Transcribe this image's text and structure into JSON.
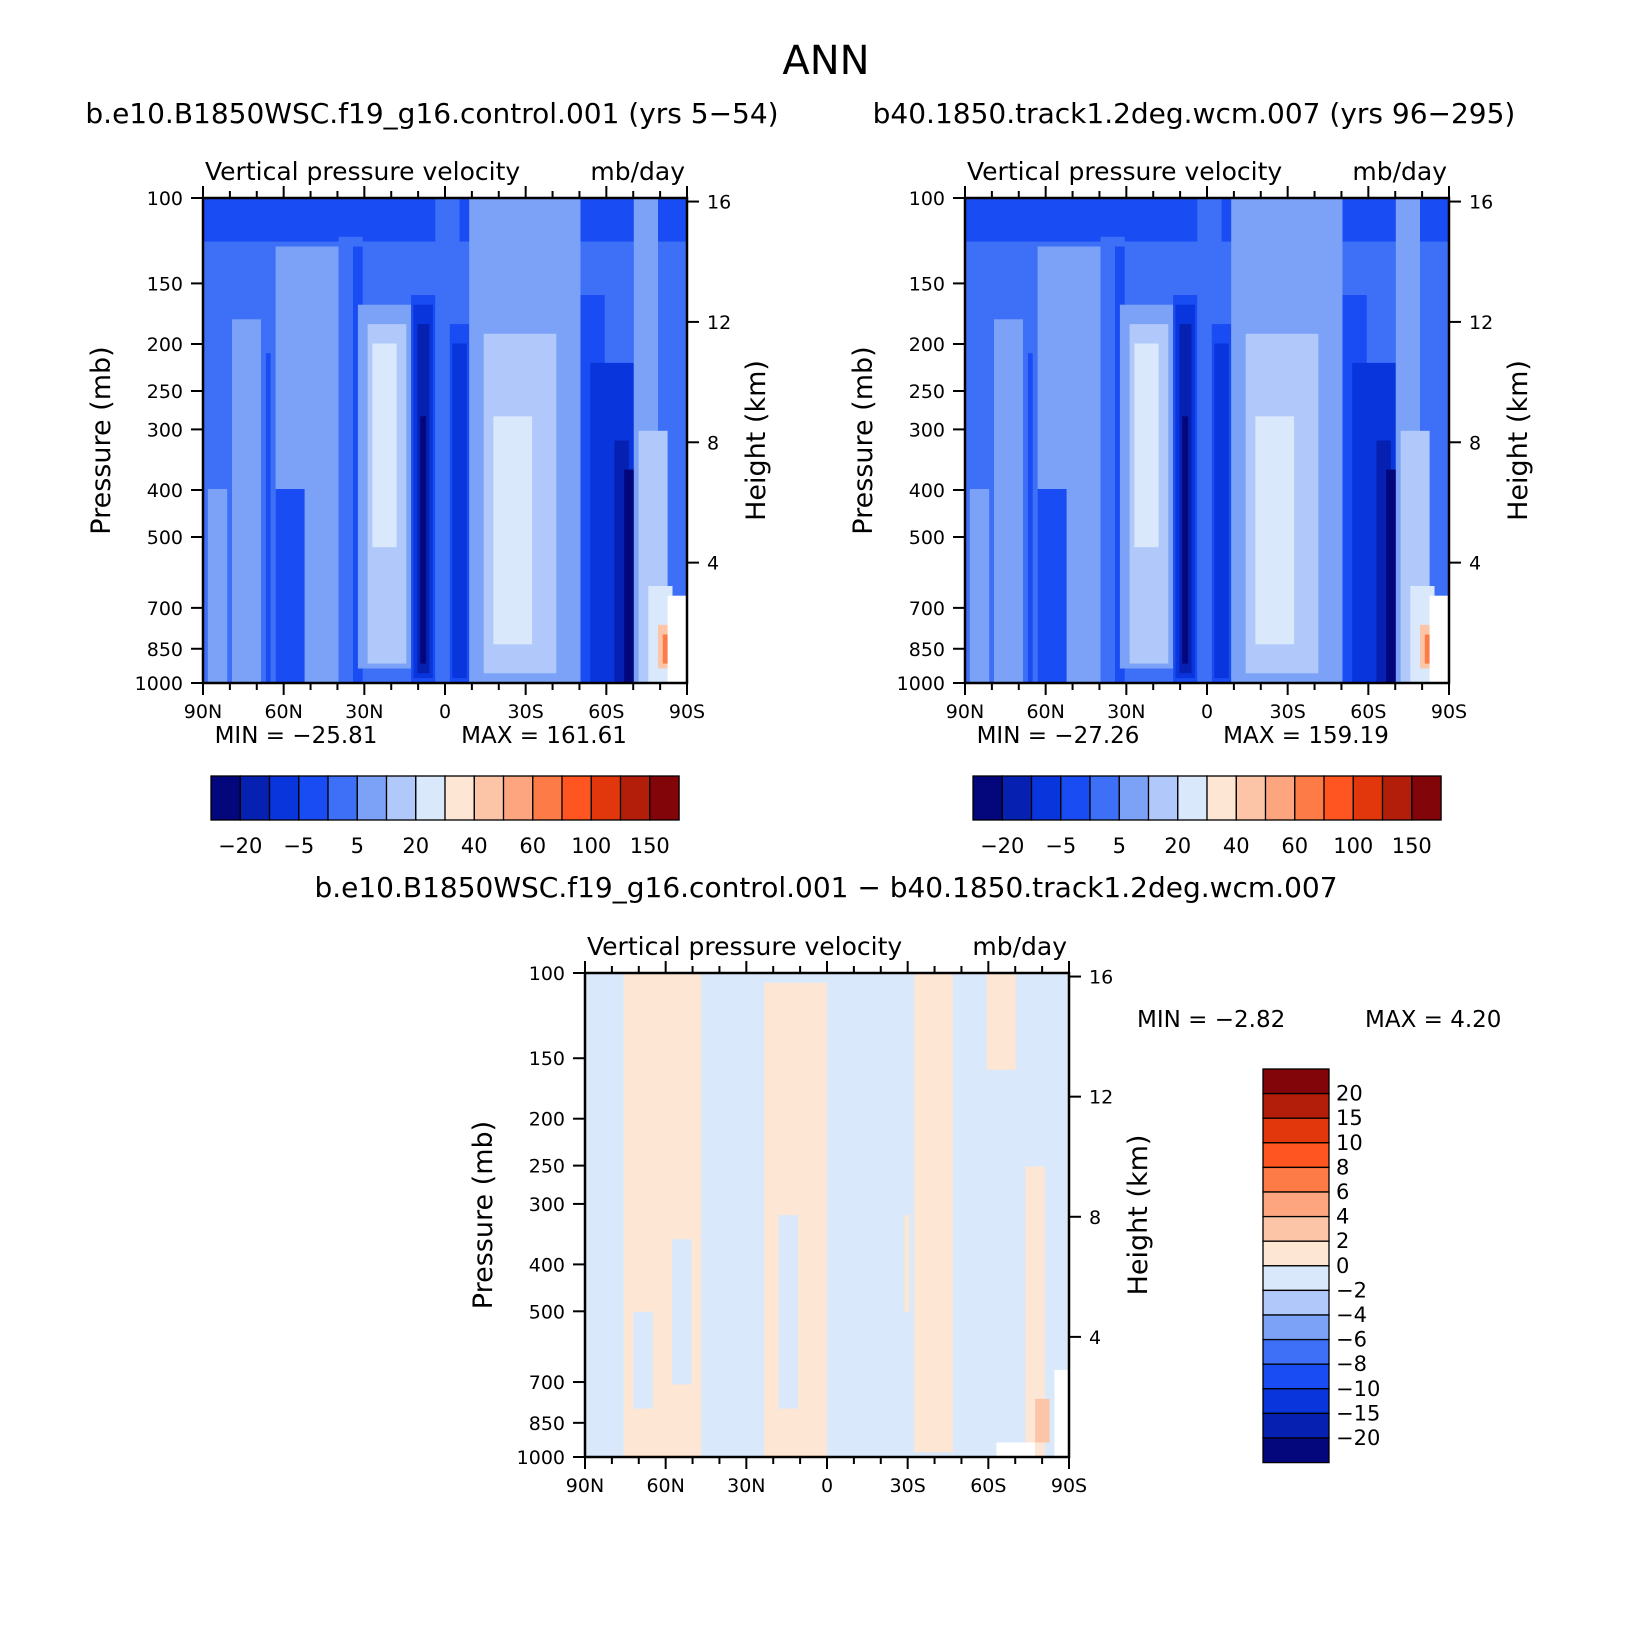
{
  "figure": {
    "title": "ANN"
  },
  "labels": {
    "plot_title": "Vertical pressure velocity",
    "units": "mb/day",
    "ylabel": "Pressure (mb)",
    "y2label": "Height (km)",
    "min_word": "MIN =",
    "max_word": "MAX ="
  },
  "ticks": {
    "pressure": [
      "100",
      "150",
      "200",
      "250",
      "300",
      "400",
      "500",
      "700",
      "850",
      "1000"
    ],
    "height": [
      "16",
      "12",
      "8",
      "4"
    ],
    "lat": [
      "90N",
      "60N",
      "30N",
      "0",
      "30S",
      "60S",
      "90S"
    ]
  },
  "colorbars": {
    "abs_labels": [
      "-20",
      "-5",
      "5",
      "20",
      "40",
      "60",
      "100",
      "150"
    ],
    "diff_labels": [
      "20",
      "15",
      "10",
      "8",
      "6",
      "4",
      "2",
      "0",
      "-2",
      "-4",
      "-6",
      "-8",
      "-10",
      "-15",
      "-20"
    ]
  },
  "colors": {
    "abs_palette": [
      "#03077b",
      "#0620b1",
      "#0935dd",
      "#1a4cf3",
      "#3d6ff7",
      "#7ba2f7",
      "#b0c8fa",
      "#d9e8fb",
      "#fde6d3",
      "#fcc5a8",
      "#fca57e",
      "#fd7b46",
      "#ff5520",
      "#e2360c",
      "#b21e09",
      "#820509"
    ],
    "diff_palette_top_down": [
      "#820509",
      "#b21e09",
      "#e2360c",
      "#ff5520",
      "#fd7b46",
      "#fca57e",
      "#fcc5a8",
      "#fde6d3",
      "#d9e8fb",
      "#b0c8fa",
      "#7ba2f7",
      "#3d6ff7",
      "#1a4cf3",
      "#0935dd",
      "#0620b1",
      "#03077b"
    ]
  },
  "chart_data": [
    {
      "type": "heatmap",
      "name": "b.e10.B1850WSC.f19_g16.control.001 (yrs 5-54)",
      "title": "Vertical pressure velocity",
      "units": "mb/day",
      "xlabel": "",
      "ylabel": "Pressure (mb)",
      "y2label": "Height (km)",
      "x": [
        "90N",
        "60N",
        "30N",
        "0",
        "30S",
        "60S",
        "90S"
      ],
      "y_ticks": [
        100,
        150,
        200,
        250,
        300,
        400,
        500,
        700,
        850,
        1000
      ],
      "y_log": true,
      "y_reversed": true,
      "height_ticks_km": [
        16,
        12,
        8,
        4
      ],
      "min": -25.81,
      "max": 161.61,
      "colorbar_levels": [
        -20,
        -5,
        5,
        20,
        40,
        60,
        100,
        150
      ]
    },
    {
      "type": "heatmap",
      "name": "b40.1850.track1.2deg.wcm.007 (yrs 96-295)",
      "title": "Vertical pressure velocity",
      "units": "mb/day",
      "xlabel": "",
      "ylabel": "Pressure (mb)",
      "y2label": "Height (km)",
      "x": [
        "90N",
        "60N",
        "30N",
        "0",
        "30S",
        "60S",
        "90S"
      ],
      "y_ticks": [
        100,
        150,
        200,
        250,
        300,
        400,
        500,
        700,
        850,
        1000
      ],
      "y_log": true,
      "y_reversed": true,
      "height_ticks_km": [
        16,
        12,
        8,
        4
      ],
      "min": -27.26,
      "max": 159.19,
      "colorbar_levels": [
        -20,
        -5,
        5,
        20,
        40,
        60,
        100,
        150
      ]
    },
    {
      "type": "heatmap",
      "name": "b.e10.B1850WSC.f19_g16.control.001 - b40.1850.track1.2deg.wcm.007",
      "title": "Vertical pressure velocity",
      "units": "mb/day",
      "xlabel": "",
      "ylabel": "Pressure (mb)",
      "y2label": "Height (km)",
      "x": [
        "90N",
        "60N",
        "30N",
        "0",
        "30S",
        "60S",
        "90S"
      ],
      "y_ticks": [
        100,
        150,
        200,
        250,
        300,
        400,
        500,
        700,
        850,
        1000
      ],
      "y_log": true,
      "y_reversed": true,
      "height_ticks_km": [
        16,
        12,
        8,
        4
      ],
      "min": -2.82,
      "max": 4.2,
      "colorbar_levels": [
        20,
        15,
        10,
        8,
        6,
        4,
        2,
        0,
        -2,
        -4,
        -6,
        -8,
        -10,
        -15,
        -20
      ]
    }
  ]
}
